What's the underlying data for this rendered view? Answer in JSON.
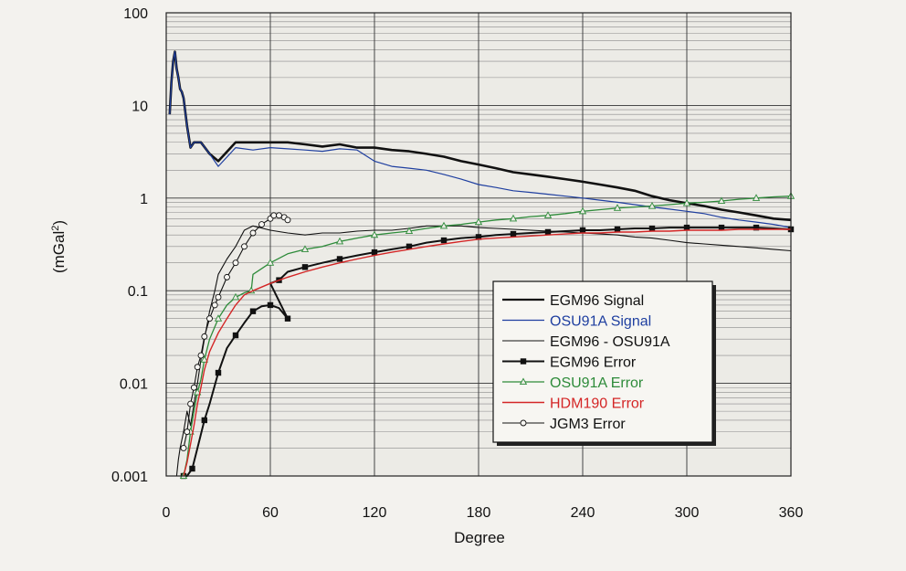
{
  "chart_data": {
    "type": "line",
    "title": "",
    "xlabel": "Degree",
    "ylabel": "(mGal²)",
    "ylabel_base": "(mGal",
    "ylabel_sup": "2",
    "ylabel_close": ")",
    "xlim": [
      0,
      360
    ],
    "ylim": [
      0.001,
      100
    ],
    "yscale": "log",
    "grid": true,
    "legend_position": "lower-right",
    "x_ticks": [
      0,
      60,
      120,
      180,
      240,
      300,
      360
    ],
    "x_tick_labels": [
      "0",
      "60",
      "120",
      "180",
      "240",
      "300",
      "360"
    ],
    "y_ticks": [
      0.001,
      0.01,
      0.1,
      1,
      10,
      100
    ],
    "y_tick_labels": [
      "0.001",
      "0.01",
      "0.1",
      "1",
      "10",
      "100"
    ],
    "series": [
      {
        "name": "EGM96 Signal",
        "color": "#111111",
        "marker": "none",
        "width": 2.6,
        "x": [
          2,
          3,
          4,
          5,
          6,
          7,
          8,
          9,
          10,
          12,
          14,
          16,
          20,
          25,
          30,
          40,
          50,
          60,
          70,
          80,
          90,
          100,
          110,
          120,
          130,
          140,
          150,
          160,
          170,
          180,
          190,
          200,
          210,
          220,
          230,
          240,
          250,
          260,
          270,
          280,
          290,
          300,
          310,
          320,
          330,
          340,
          350,
          360
        ],
        "y": [
          8,
          18,
          30,
          38,
          25,
          20,
          15,
          14,
          12,
          6,
          3.5,
          4,
          4,
          3,
          2.5,
          4,
          4,
          4,
          4,
          3.8,
          3.6,
          3.8,
          3.5,
          3.5,
          3.3,
          3.2,
          3,
          2.8,
          2.5,
          2.3,
          2.1,
          1.9,
          1.8,
          1.7,
          1.6,
          1.5,
          1.4,
          1.3,
          1.2,
          1.05,
          0.95,
          0.88,
          0.82,
          0.75,
          0.7,
          0.65,
          0.6,
          0.58
        ]
      },
      {
        "name": "OSU91A Signal",
        "color": "#1f3fa0",
        "marker": "none",
        "width": 1.2,
        "x": [
          2,
          3,
          4,
          5,
          6,
          7,
          8,
          9,
          10,
          12,
          14,
          16,
          20,
          25,
          30,
          40,
          50,
          60,
          70,
          80,
          90,
          100,
          110,
          120,
          130,
          140,
          150,
          160,
          170,
          180,
          190,
          200,
          210,
          220,
          230,
          240,
          250,
          260,
          270,
          280,
          290,
          300,
          310,
          320,
          330,
          340,
          350,
          360
        ],
        "y": [
          8,
          18,
          30,
          38,
          25,
          20,
          15,
          14,
          12,
          6,
          3.5,
          4,
          4,
          3,
          2.2,
          3.5,
          3.3,
          3.5,
          3.4,
          3.3,
          3.2,
          3.4,
          3.3,
          2.5,
          2.2,
          2.1,
          2,
          1.8,
          1.6,
          1.4,
          1.3,
          1.2,
          1.15,
          1.1,
          1.05,
          1,
          0.95,
          0.9,
          0.85,
          0.8,
          0.76,
          0.72,
          0.68,
          0.62,
          0.58,
          0.55,
          0.52,
          0.48
        ]
      },
      {
        "name": "EGM96 - OSU91A",
        "color": "#111111",
        "marker": "none",
        "width": 1.1,
        "x": [
          6,
          7,
          8,
          10,
          12,
          14,
          16,
          18,
          20,
          22,
          25,
          28,
          30,
          35,
          40,
          45,
          50,
          60,
          70,
          80,
          90,
          100,
          110,
          120,
          130,
          140,
          150,
          160,
          170,
          180,
          190,
          200,
          210,
          220,
          230,
          240,
          250,
          260,
          270,
          280,
          290,
          300,
          310,
          320,
          330,
          340,
          350,
          360
        ],
        "y": [
          0.001,
          0.0015,
          0.002,
          0.003,
          0.005,
          0.0035,
          0.006,
          0.01,
          0.018,
          0.03,
          0.06,
          0.1,
          0.15,
          0.22,
          0.3,
          0.45,
          0.5,
          0.45,
          0.42,
          0.4,
          0.42,
          0.42,
          0.44,
          0.45,
          0.45,
          0.47,
          0.5,
          0.5,
          0.5,
          0.48,
          0.47,
          0.46,
          0.45,
          0.44,
          0.43,
          0.42,
          0.41,
          0.4,
          0.38,
          0.37,
          0.35,
          0.33,
          0.32,
          0.31,
          0.3,
          0.29,
          0.28,
          0.27
        ]
      },
      {
        "name": "EGM96 Error",
        "color": "#111111",
        "marker": "square",
        "width": 2.0,
        "x": [
          10,
          12,
          15,
          18,
          22,
          25,
          30,
          35,
          40,
          45,
          50,
          55,
          60,
          65,
          70,
          60,
          65,
          70,
          80,
          90,
          100,
          110,
          120,
          130,
          140,
          150,
          160,
          170,
          180,
          190,
          200,
          210,
          220,
          230,
          240,
          250,
          260,
          270,
          280,
          290,
          300,
          310,
          320,
          330,
          340,
          350,
          360
        ],
        "y": [
          0.001,
          0.001,
          0.0012,
          0.002,
          0.004,
          0.006,
          0.013,
          0.024,
          0.033,
          0.045,
          0.06,
          0.068,
          0.07,
          0.065,
          0.05,
          0.12,
          0.13,
          0.16,
          0.18,
          0.2,
          0.22,
          0.24,
          0.26,
          0.28,
          0.3,
          0.33,
          0.35,
          0.37,
          0.38,
          0.4,
          0.41,
          0.42,
          0.43,
          0.44,
          0.45,
          0.45,
          0.46,
          0.47,
          0.47,
          0.48,
          0.48,
          0.48,
          0.48,
          0.48,
          0.48,
          0.47,
          0.46
        ]
      },
      {
        "name": "OSU91A Error",
        "color": "#2e8b3a",
        "marker": "triangle",
        "width": 1.3,
        "x": [
          10,
          12,
          14,
          16,
          18,
          20,
          22,
          25,
          30,
          35,
          40,
          45,
          49,
          50,
          60,
          70,
          80,
          90,
          100,
          110,
          120,
          130,
          140,
          150,
          160,
          170,
          180,
          190,
          200,
          210,
          220,
          230,
          240,
          250,
          260,
          270,
          280,
          290,
          300,
          310,
          320,
          330,
          340,
          350,
          360
        ],
        "y": [
          0.001,
          0.0015,
          0.003,
          0.005,
          0.008,
          0.011,
          0.018,
          0.03,
          0.05,
          0.07,
          0.085,
          0.095,
          0.1,
          0.15,
          0.2,
          0.25,
          0.28,
          0.3,
          0.34,
          0.37,
          0.4,
          0.42,
          0.44,
          0.47,
          0.5,
          0.52,
          0.55,
          0.58,
          0.6,
          0.63,
          0.65,
          0.68,
          0.72,
          0.75,
          0.78,
          0.8,
          0.82,
          0.85,
          0.88,
          0.9,
          0.93,
          0.97,
          1.0,
          1.03,
          1.05
        ]
      },
      {
        "name": "HDM190 Error",
        "color": "#d42626",
        "marker": "none",
        "width": 1.4,
        "x": [
          10,
          12,
          14,
          16,
          18,
          20,
          22,
          25,
          30,
          35,
          40,
          45,
          50,
          60,
          70,
          80,
          90,
          100,
          110,
          120,
          130,
          140,
          150,
          160,
          170,
          180,
          190,
          200,
          210,
          220,
          230,
          240,
          250,
          260,
          270,
          280,
          290,
          300,
          310,
          320,
          330,
          340,
          350,
          360
        ],
        "y": [
          0.001,
          0.0014,
          0.0022,
          0.0035,
          0.006,
          0.009,
          0.014,
          0.022,
          0.035,
          0.05,
          0.07,
          0.09,
          0.1,
          0.12,
          0.14,
          0.16,
          0.18,
          0.2,
          0.22,
          0.24,
          0.26,
          0.28,
          0.3,
          0.32,
          0.34,
          0.36,
          0.37,
          0.38,
          0.39,
          0.4,
          0.41,
          0.42,
          0.42,
          0.43,
          0.43,
          0.44,
          0.44,
          0.45,
          0.45,
          0.45,
          0.46,
          0.46,
          0.46,
          0.46
        ]
      },
      {
        "name": "JGM3 Error",
        "color": "#111111",
        "marker": "circle",
        "width": 1.1,
        "x": [
          10,
          12,
          14,
          16,
          18,
          20,
          22,
          25,
          28,
          30,
          35,
          40,
          45,
          50,
          55,
          60,
          62,
          65,
          68,
          70
        ],
        "y": [
          0.002,
          0.003,
          0.006,
          0.009,
          0.015,
          0.02,
          0.032,
          0.05,
          0.07,
          0.085,
          0.14,
          0.2,
          0.3,
          0.42,
          0.52,
          0.6,
          0.65,
          0.65,
          0.62,
          0.58
        ]
      }
    ]
  }
}
